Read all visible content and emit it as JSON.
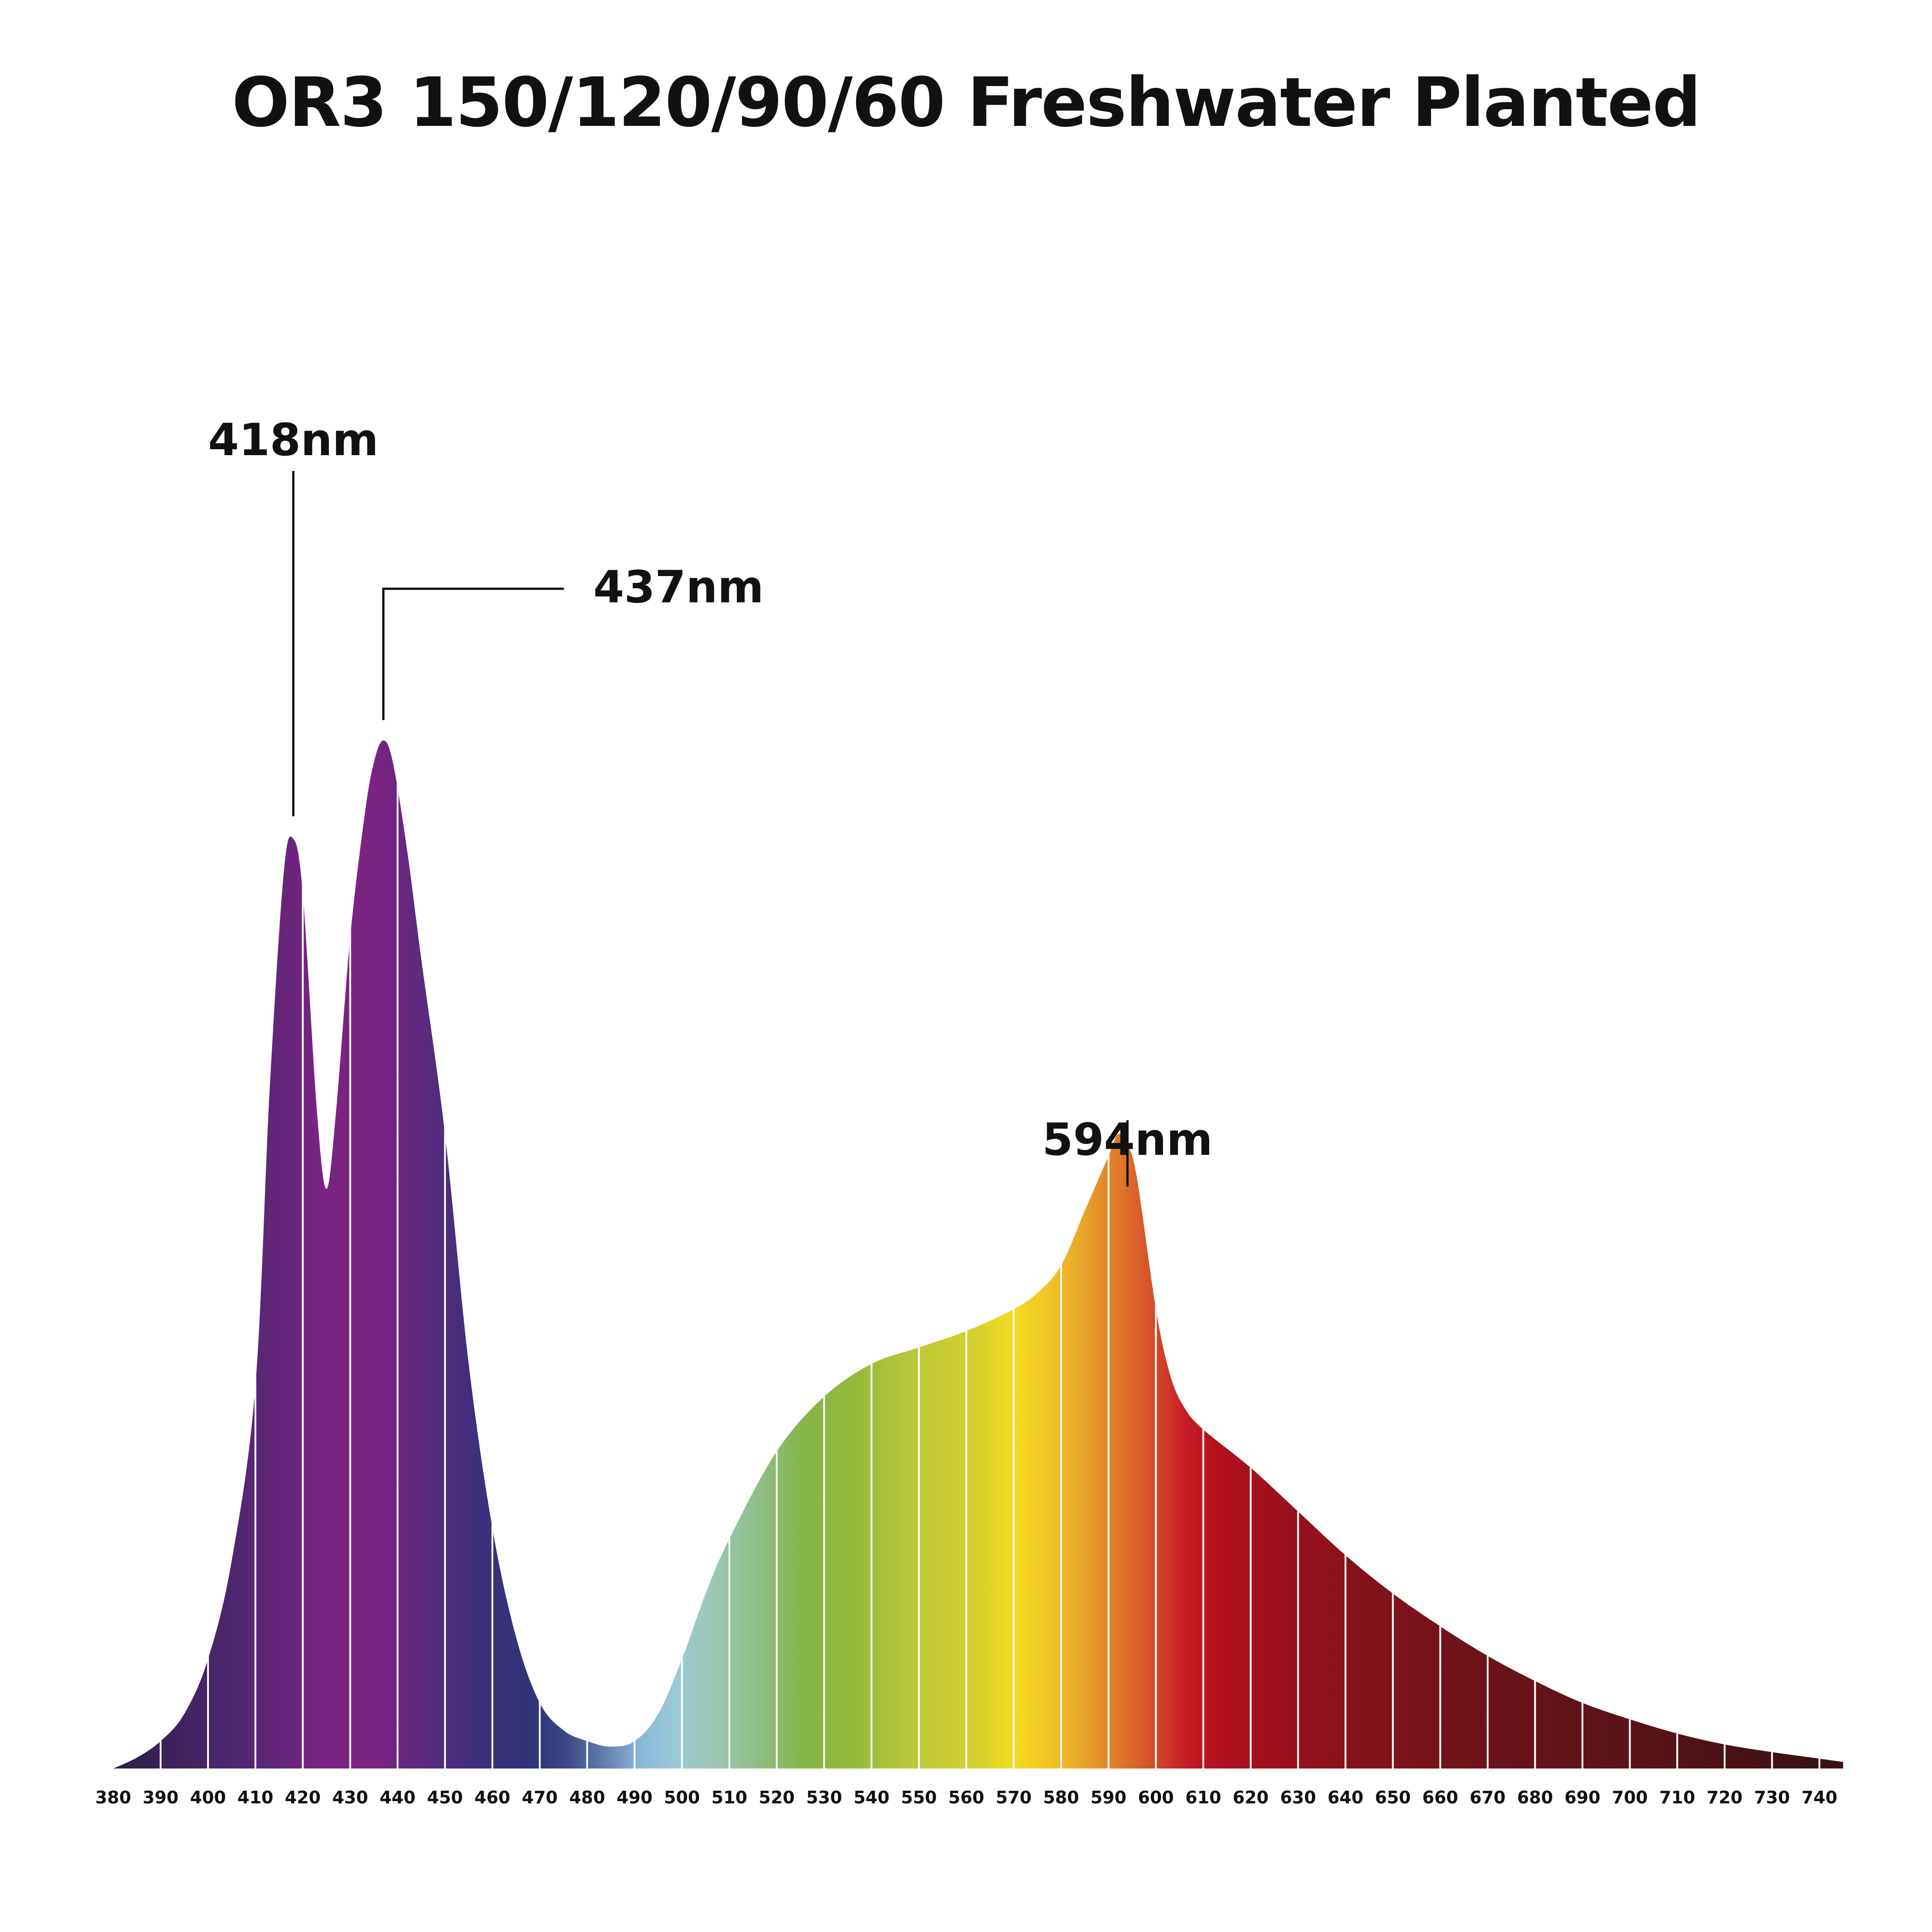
{
  "chart_data": {
    "type": "area",
    "title": "OR3 150/120/90/60 Freshwater Planted",
    "xlabel": "",
    "ylabel": "",
    "x_unit": "nm",
    "xlim": [
      380,
      745
    ],
    "ylim": [
      0,
      100
    ],
    "grid": "vertical lines every 10 nm inside the curve",
    "legend": "none",
    "x_ticks": [
      "380",
      "390",
      "400",
      "410",
      "420",
      "430",
      "440",
      "450",
      "460",
      "470",
      "480",
      "490",
      "500",
      "510",
      "520",
      "530",
      "540",
      "550",
      "560",
      "570",
      "580",
      "590",
      "600",
      "610",
      "620",
      "630",
      "640",
      "650",
      "660",
      "670",
      "680",
      "690",
      "700",
      "710",
      "720",
      "730",
      "740"
    ],
    "series": [
      {
        "x": [
          380,
          385,
          390,
          395,
          400,
          405,
          410,
          413,
          416,
          418,
          420,
          423,
          425,
          427,
          430,
          433,
          435,
          437,
          439,
          442,
          445,
          450,
          455,
          460,
          465,
          470,
          475,
          480,
          485,
          490,
          495,
          500,
          505,
          510,
          520,
          530,
          540,
          550,
          560,
          570,
          575,
          580,
          585,
          590,
          592,
          594,
          596,
          600,
          603,
          606,
          610,
          620,
          630,
          640,
          650,
          660,
          670,
          680,
          690,
          700,
          710,
          720,
          730,
          740,
          745
        ],
        "values": [
          0,
          1,
          2.5,
          5,
          10,
          19,
          35,
          62,
          82,
          85,
          80,
          60,
          53,
          60,
          76,
          87,
          92,
          94,
          92,
          84,
          74,
          58,
          37,
          22,
          12,
          6,
          3.5,
          2.5,
          2,
          2.5,
          5,
          10,
          16,
          21,
          29,
          34,
          37,
          38.5,
          40,
          42,
          43.5,
          46,
          51,
          56,
          58,
          57,
          54,
          42,
          36,
          33,
          31,
          27.5,
          23.5,
          19.5,
          16,
          13,
          10.3,
          8,
          6,
          4.5,
          3.2,
          2.2,
          1.5,
          0.9,
          0.6
        ]
      }
    ],
    "peaks": [
      {
        "wavelength": 418,
        "label": "418nm"
      },
      {
        "wavelength": 437,
        "label": "437nm"
      },
      {
        "wavelength": 594,
        "label": "594nm"
      }
    ]
  }
}
